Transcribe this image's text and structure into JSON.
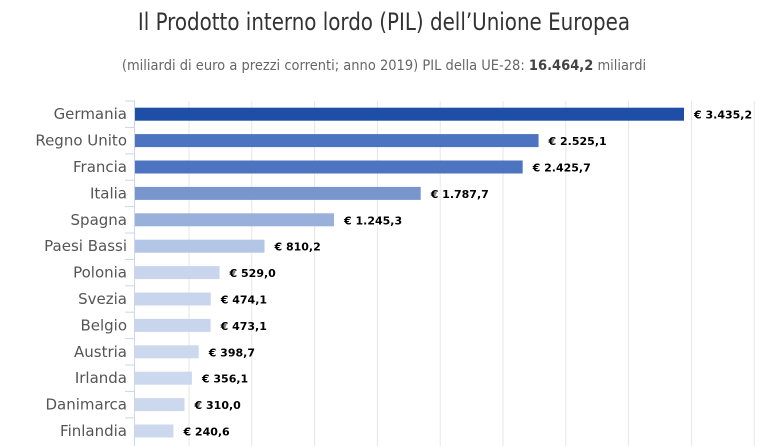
{
  "chart_data": {
    "type": "bar",
    "orientation": "horizontal",
    "title": "Il Prodotto interno lordo (PIL) dell’Unione Europea",
    "subtitle_prefix": "(miliardi di euro a prezzi correnti; anno 2019) PIL della UE-28: ",
    "subtitle_value": "16.464,2",
    "subtitle_suffix": " miliardi",
    "categories": [
      "Germania",
      "Regno Unito",
      "Francia",
      "Italia",
      "Spagna",
      "Paesi Bassi",
      "Polonia",
      "Svezia",
      "Belgio",
      "Austria",
      "Irlanda",
      "Danimarca",
      "Finlandia"
    ],
    "values": [
      3435.2,
      2525.1,
      2425.7,
      1787.7,
      1245.3,
      810.2,
      529.0,
      474.1,
      473.1,
      398.7,
      356.1,
      310.0,
      240.6
    ],
    "data_labels": [
      "€ 3.435,2",
      "€ 2.525,1",
      "€ 2.425,7",
      "€ 1.787,7",
      "€ 1.245,3",
      "€ 810,2",
      "€ 529,0",
      "€ 474,1",
      "€ 473,1",
      "€ 398,7",
      "€ 356,1",
      "€ 310,0",
      "€ 240,6"
    ],
    "colors": [
      "#1f4ea6",
      "#4c74c0",
      "#4c74c0",
      "#7896cc",
      "#98b0da",
      "#b4c6e6",
      "#c8d5ec",
      "#c8d5ec",
      "#c8d5ec",
      "#ccd8ee",
      "#ccd8ee",
      "#ccd8ee",
      "#ccd8ee"
    ],
    "xlabel": "",
    "ylabel": "",
    "xlim": [
      0,
      3650
    ],
    "grid": true,
    "legend": "none"
  }
}
